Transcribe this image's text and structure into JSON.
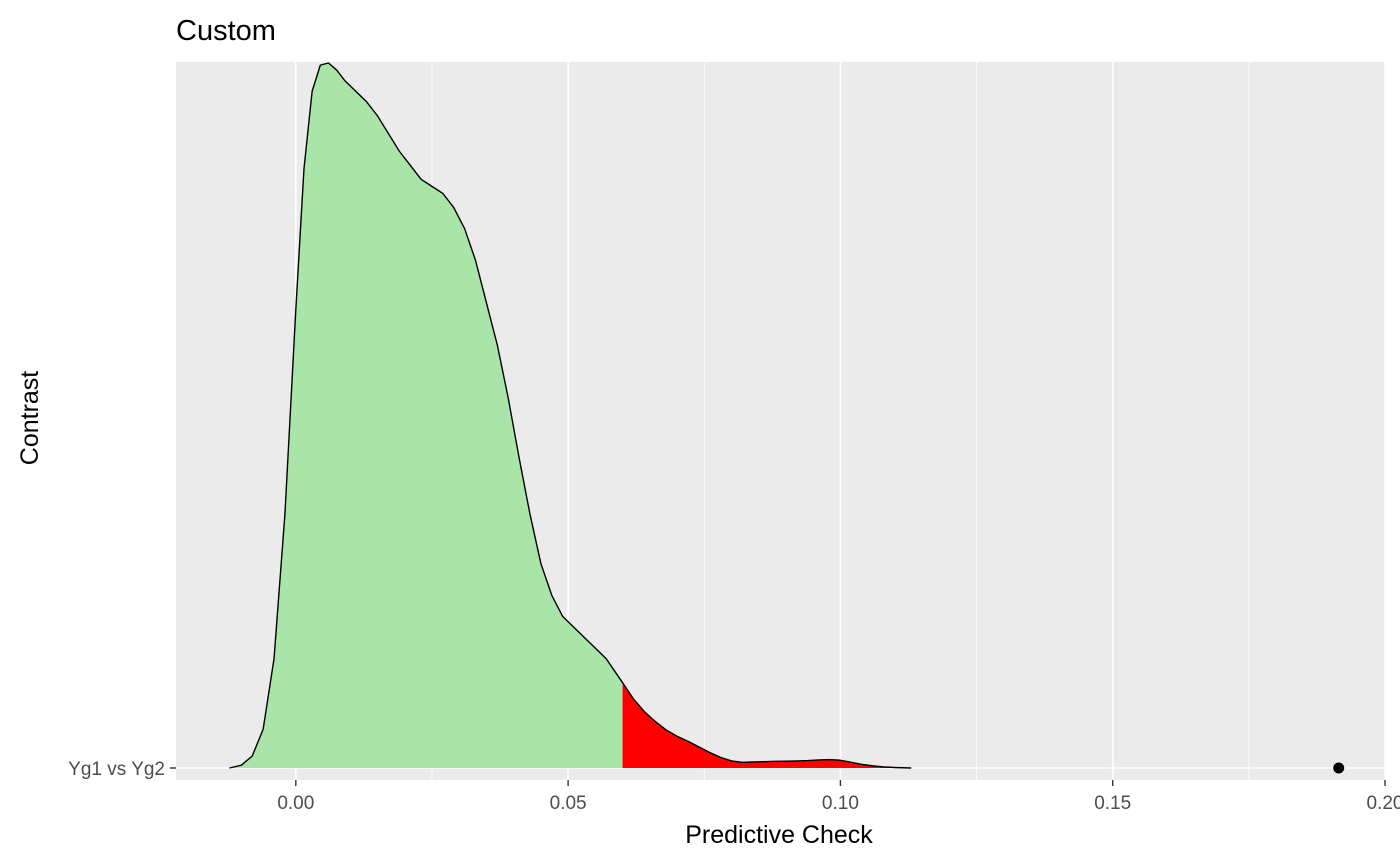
{
  "chart_data": {
    "type": "density_ridge",
    "title": "Custom",
    "xlabel": "Predictive Check",
    "ylabel": "Contrast",
    "xlim": [
      -0.022,
      0.2
    ],
    "x_ticks": [
      0.0,
      0.05,
      0.1,
      0.15,
      0.2
    ],
    "x_tick_labels": [
      "0.00",
      "0.05",
      "0.10",
      "0.15",
      "0.20"
    ],
    "categories": [
      "Yg1 vs Yg2"
    ],
    "grid": true,
    "background": "#ebebeb",
    "grid_color": "#ffffff",
    "threshold": 0.06,
    "fill_below_color": "#a9e5a9",
    "fill_above_color": "#ff0000",
    "outline_color": "#000000",
    "observed_point": {
      "category": "Yg1 vs Yg2",
      "x": 0.1915,
      "color": "#000000"
    },
    "density_x": [
      -0.0122,
      -0.01,
      -0.008,
      -0.006,
      -0.004,
      -0.002,
      0.0,
      0.0015,
      0.003,
      0.0045,
      0.006,
      0.0075,
      0.009,
      0.011,
      0.013,
      0.015,
      0.017,
      0.019,
      0.021,
      0.023,
      0.025,
      0.027,
      0.029,
      0.031,
      0.033,
      0.035,
      0.037,
      0.039,
      0.041,
      0.043,
      0.045,
      0.047,
      0.049,
      0.051,
      0.053,
      0.055,
      0.057,
      0.06,
      0.062,
      0.064,
      0.066,
      0.068,
      0.07,
      0.072,
      0.074,
      0.076,
      0.078,
      0.08,
      0.082,
      0.084,
      0.086,
      0.088,
      0.09,
      0.092,
      0.094,
      0.096,
      0.098,
      0.1,
      0.102,
      0.104,
      0.106,
      0.108,
      0.11,
      0.113
    ],
    "density_y": [
      0.0,
      0.004,
      0.017,
      0.055,
      0.155,
      0.36,
      0.65,
      0.85,
      0.96,
      0.997,
      1.0,
      0.99,
      0.975,
      0.96,
      0.945,
      0.925,
      0.9,
      0.875,
      0.855,
      0.835,
      0.825,
      0.815,
      0.795,
      0.765,
      0.72,
      0.66,
      0.6,
      0.525,
      0.44,
      0.36,
      0.29,
      0.245,
      0.215,
      0.2,
      0.185,
      0.17,
      0.155,
      0.121,
      0.098,
      0.08,
      0.066,
      0.054,
      0.045,
      0.038,
      0.03,
      0.022,
      0.015,
      0.01,
      0.008,
      0.0085,
      0.009,
      0.0095,
      0.0097,
      0.01,
      0.0105,
      0.0115,
      0.012,
      0.011,
      0.008,
      0.005,
      0.003,
      0.0015,
      0.0007,
      0.0
    ]
  }
}
